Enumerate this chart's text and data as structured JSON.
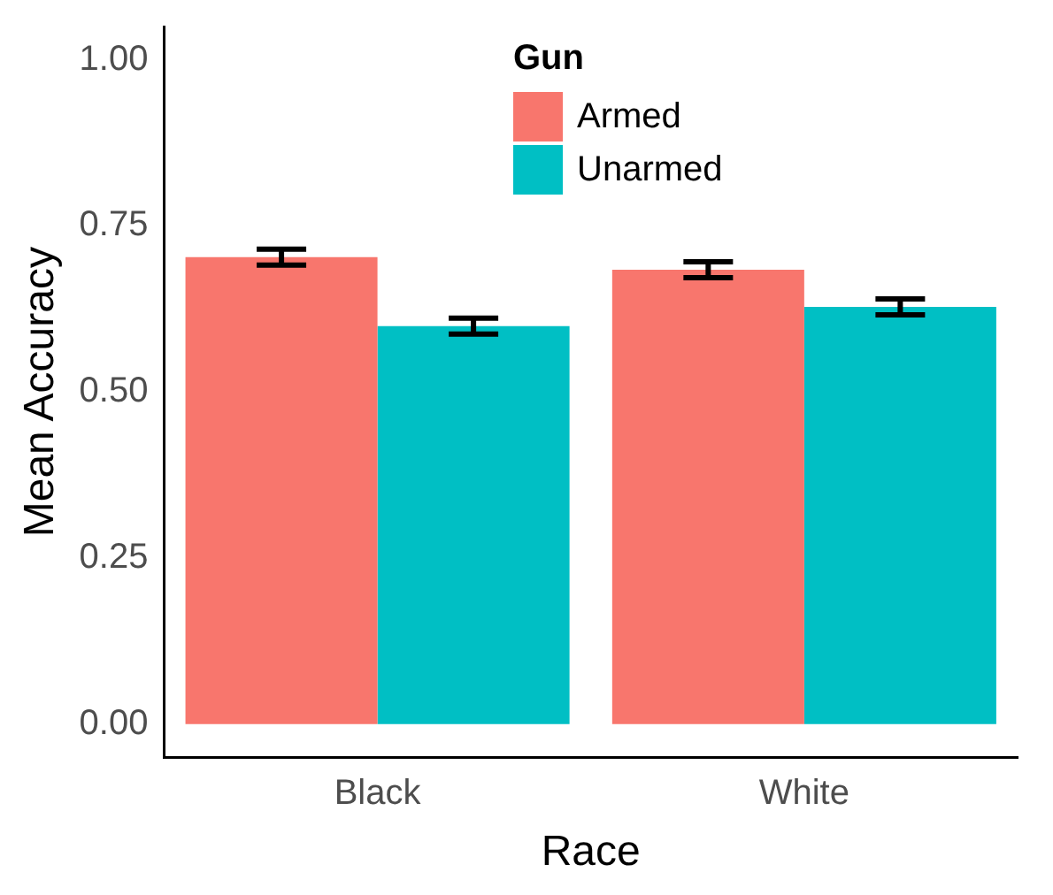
{
  "chart_data": {
    "type": "bar",
    "xlabel": "Race",
    "ylabel": "Mean Accuracy",
    "legend_title": "Gun",
    "categories": [
      "Black",
      "White"
    ],
    "series": [
      {
        "name": "Armed",
        "color": "#f8766d",
        "values": [
          0.703,
          0.684
        ],
        "errors": [
          0.012,
          0.012
        ]
      },
      {
        "name": "Unarmed",
        "color": "#00bfc4",
        "values": [
          0.599,
          0.628
        ],
        "errors": [
          0.012,
          0.012
        ]
      }
    ],
    "ylim": [
      -0.05,
      1.05
    ],
    "yticks": [
      {
        "value": 0,
        "label": "0.00"
      },
      {
        "value": 0.25,
        "label": "0.25"
      },
      {
        "value": 0.5,
        "label": "0.50"
      },
      {
        "value": 0.75,
        "label": "0.75"
      },
      {
        "value": 1,
        "label": "1.00"
      }
    ],
    "grid": false,
    "legend": "top"
  }
}
